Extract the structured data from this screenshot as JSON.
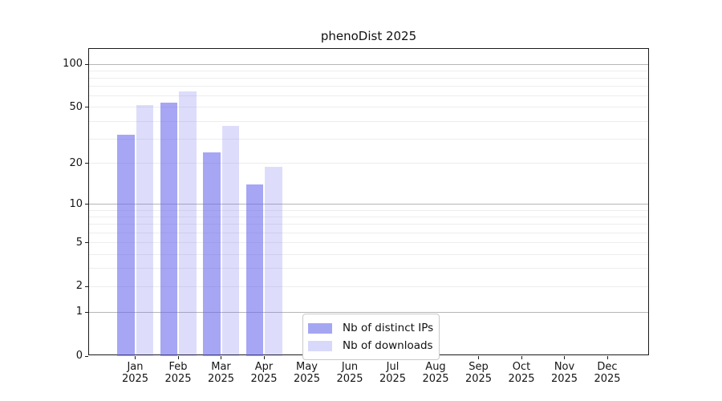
{
  "title": "phenoDist 2025",
  "legend": {
    "items": [
      {
        "label": "Nb of distinct IPs"
      },
      {
        "label": "Nb of downloads"
      }
    ]
  },
  "colors": {
    "bar_base": "#6666ee",
    "ips_fill": "rgba(102,102,238,0.58)",
    "downloads_fill": "rgba(102,102,238,0.22)",
    "ips_swatch": "#a5a6f2",
    "downloads_swatch": "#d8d9fa",
    "grid_minor": "#ededed",
    "grid_major": "#b6b6b6",
    "axis": "#1a1a1a"
  },
  "chart_data": {
    "type": "bar",
    "title": "phenoDist 2025",
    "categories": [
      "Jan",
      "Feb",
      "Mar",
      "Apr",
      "May",
      "Jun",
      "Jul",
      "Aug",
      "Sep",
      "Oct",
      "Nov",
      "Dec"
    ],
    "year_label": "2025",
    "series": [
      {
        "name": "Nb of distinct IPs",
        "values": [
          32,
          54,
          24,
          14,
          null,
          null,
          null,
          null,
          null,
          null,
          null,
          null
        ]
      },
      {
        "name": "Nb of downloads",
        "values": [
          52,
          65,
          37,
          19,
          null,
          null,
          null,
          null,
          null,
          null,
          null,
          null
        ]
      }
    ],
    "xlabel": "",
    "ylabel": "",
    "scale": "log1p",
    "ylim": [
      0,
      126
    ],
    "yticks": [
      0,
      1,
      2,
      5,
      10,
      20,
      50,
      100
    ],
    "major_gridlines": [
      1,
      10,
      100
    ],
    "minor_gridlines": [
      2,
      3,
      4,
      5,
      6,
      7,
      8,
      9,
      20,
      30,
      40,
      50,
      60,
      70,
      80,
      90
    ],
    "grid": "on",
    "legend_position": "inside-bottom-center"
  }
}
